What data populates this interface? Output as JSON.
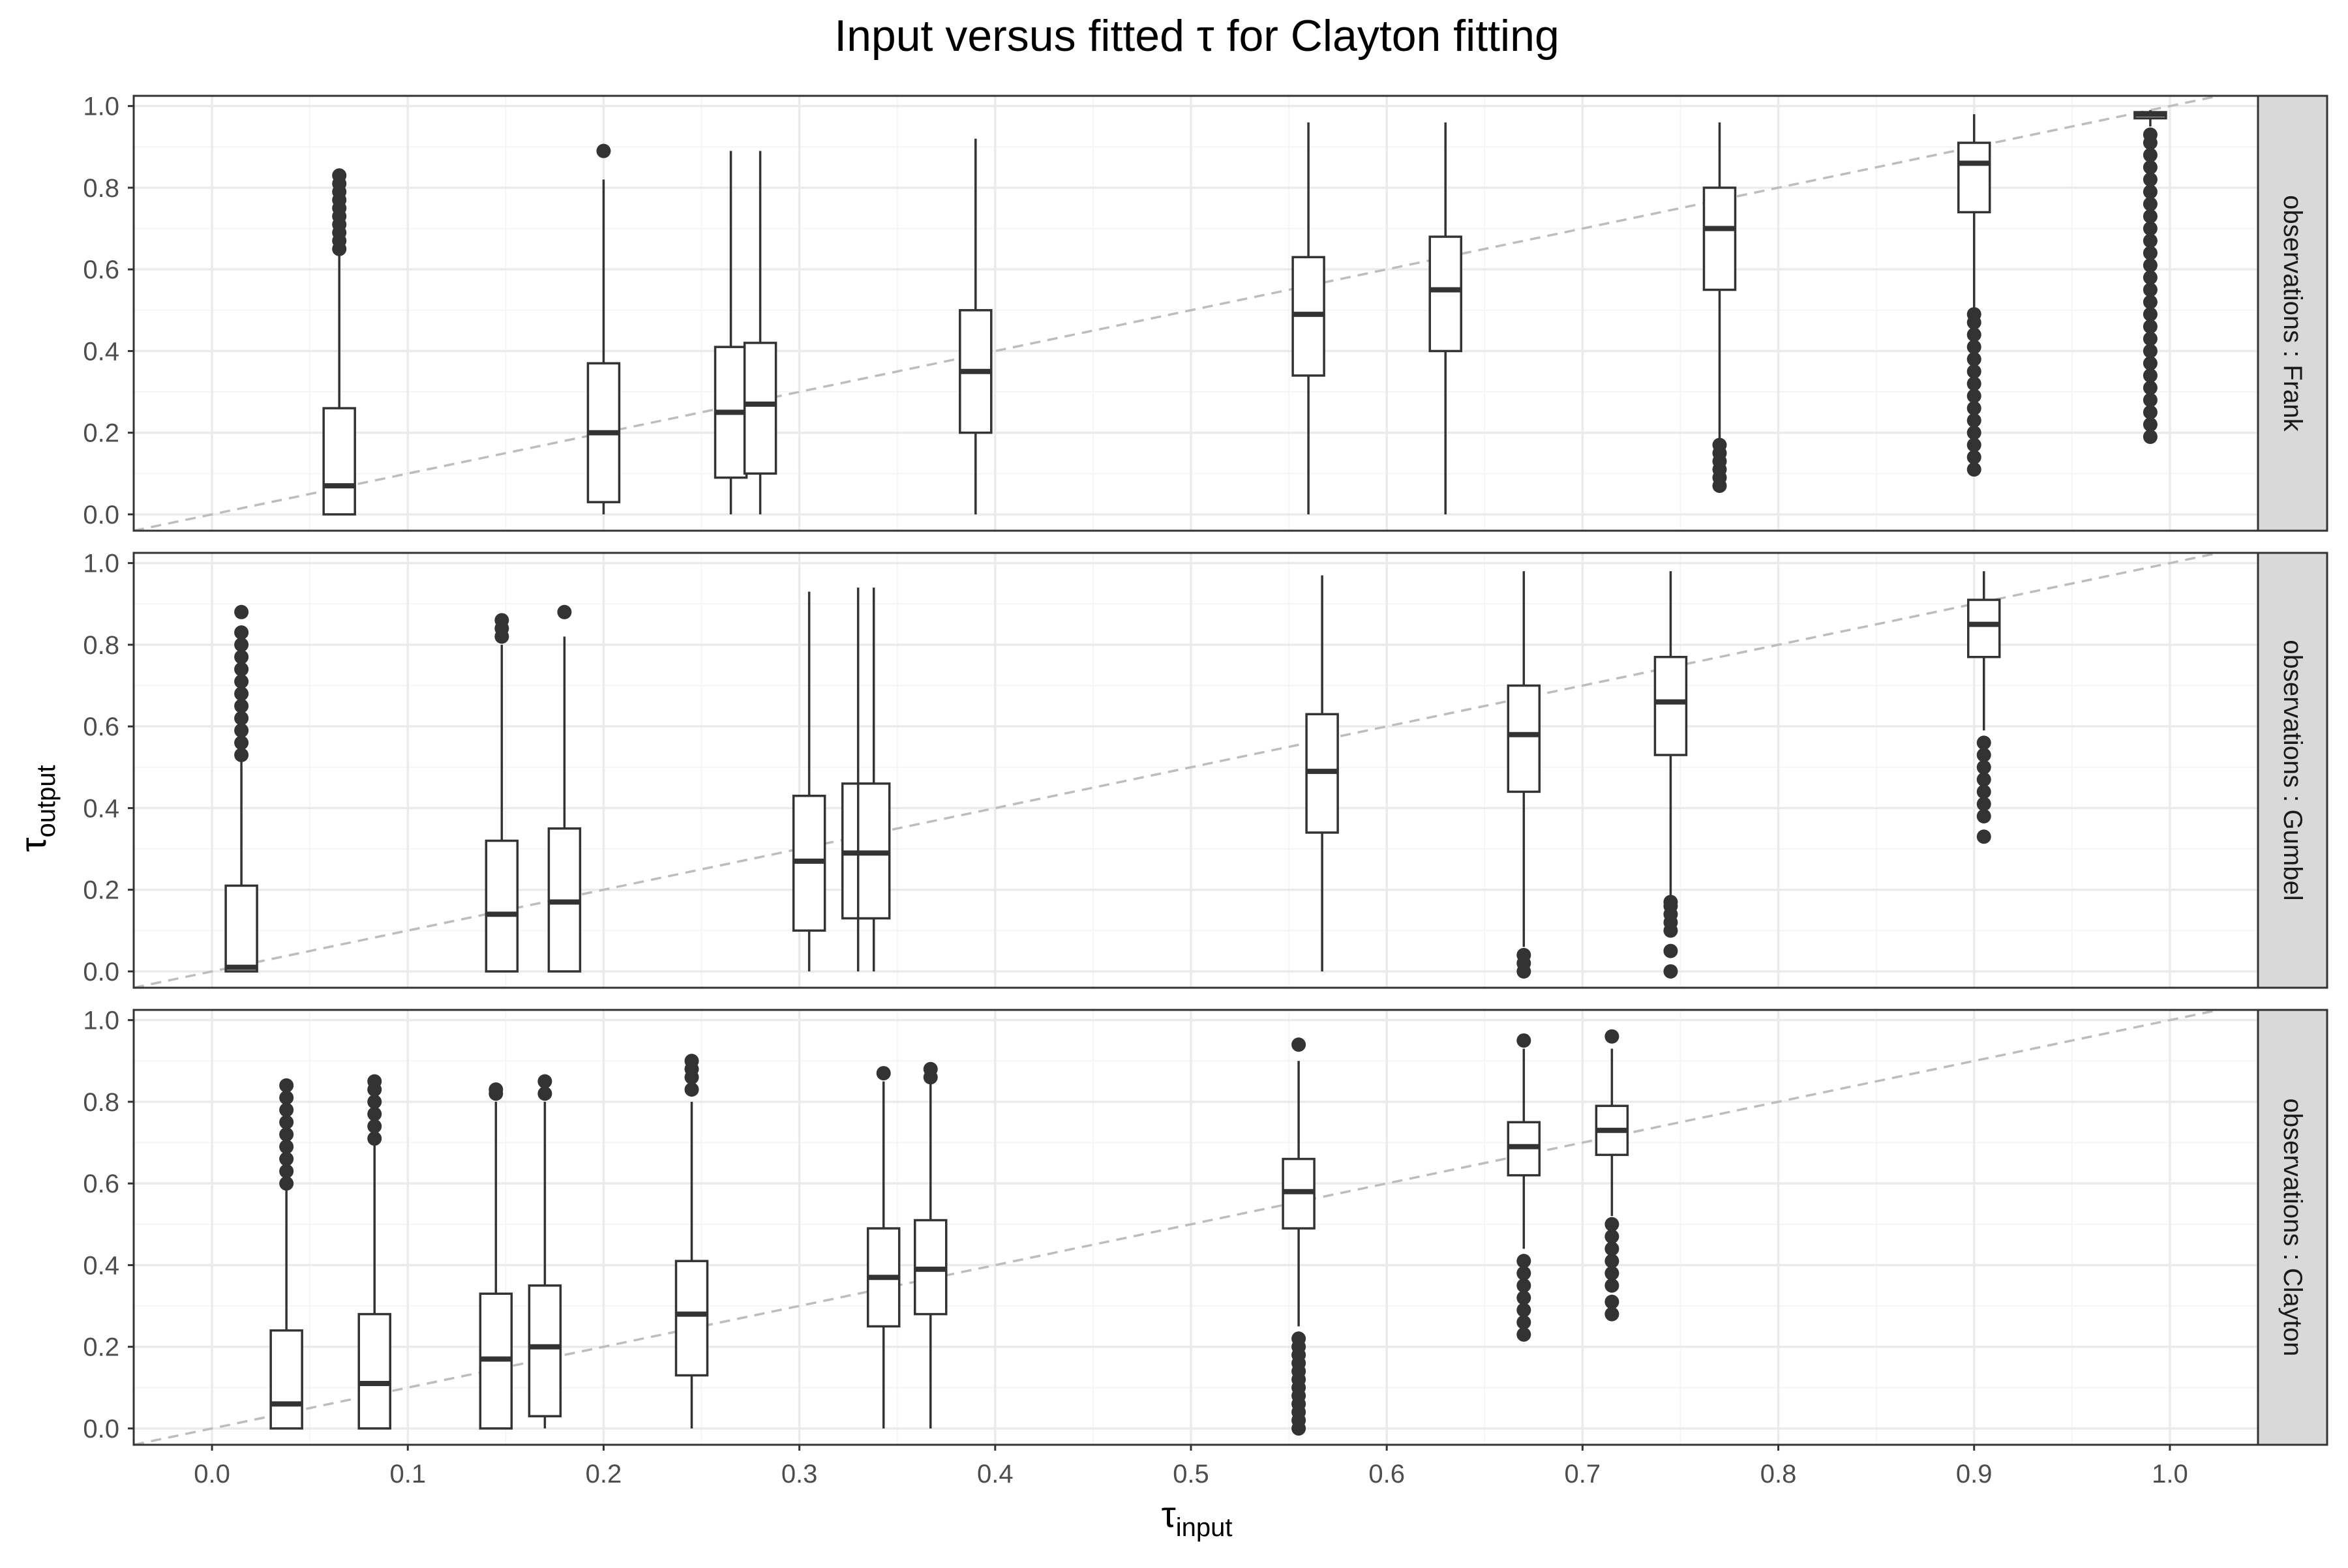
{
  "chart_data": {
    "type": "boxplot",
    "title": "Input versus fitted τ for Clayton  fitting",
    "xlabel": {
      "main": "τ",
      "sub": "input"
    },
    "ylabel": {
      "main": "τ",
      "sub": "output"
    },
    "xlim": [
      -0.04,
      1.045
    ],
    "ylim": [
      -0.04,
      1.025
    ],
    "x_ticks": [
      0.0,
      0.1,
      0.2,
      0.3,
      0.4,
      0.5,
      0.6,
      0.7,
      0.8,
      0.9,
      1.0
    ],
    "x_tick_labels": [
      "0.0",
      "0.1",
      "0.2",
      "0.3",
      "0.4",
      "0.5",
      "0.6",
      "0.7",
      "0.8",
      "0.9",
      "1.0"
    ],
    "y_ticks": [
      0.0,
      0.2,
      0.4,
      0.6,
      0.8,
      1.0
    ],
    "y_tick_labels": [
      "0.0",
      "0.2",
      "0.4",
      "0.6",
      "0.8",
      "1.0"
    ],
    "grid": true,
    "reference_line": {
      "type": "identity",
      "style": "dashed",
      "color": "#bdbdbd"
    },
    "colors": {
      "box": "#333333",
      "strip_bg": "#d9d9d9",
      "grid_major": "#ebebeb",
      "grid_minor": "#f5f5f5",
      "frame": "#333333"
    },
    "facets": [
      {
        "label": "observations : Frank",
        "boxes": [
          {
            "x": 0.065,
            "min": 0.0,
            "q1": 0.0,
            "median": 0.07,
            "q3": 0.26,
            "max": 0.64,
            "outliers": [
              0.65,
              0.67,
              0.69,
              0.71,
              0.73,
              0.75,
              0.77,
              0.79,
              0.81,
              0.83
            ]
          },
          {
            "x": 0.2,
            "min": 0.0,
            "q1": 0.03,
            "median": 0.2,
            "q3": 0.37,
            "max": 0.82,
            "outliers": [
              0.89
            ]
          },
          {
            "x": 0.265,
            "min": 0.0,
            "q1": 0.09,
            "median": 0.25,
            "q3": 0.41,
            "max": 0.89,
            "outliers": []
          },
          {
            "x": 0.28,
            "min": 0.0,
            "q1": 0.1,
            "median": 0.27,
            "q3": 0.42,
            "max": 0.89,
            "outliers": []
          },
          {
            "x": 0.39,
            "min": 0.0,
            "q1": 0.2,
            "median": 0.35,
            "q3": 0.5,
            "max": 0.92,
            "outliers": []
          },
          {
            "x": 0.56,
            "min": 0.0,
            "q1": 0.34,
            "median": 0.49,
            "q3": 0.63,
            "max": 0.96,
            "outliers": []
          },
          {
            "x": 0.63,
            "min": 0.0,
            "q1": 0.4,
            "median": 0.55,
            "q3": 0.68,
            "max": 0.96,
            "outliers": []
          },
          {
            "x": 0.77,
            "min": 0.18,
            "q1": 0.55,
            "median": 0.7,
            "q3": 0.8,
            "max": 0.96,
            "outliers": [
              0.07,
              0.09,
              0.11,
              0.13,
              0.15,
              0.17
            ]
          },
          {
            "x": 0.9,
            "min": 0.5,
            "q1": 0.74,
            "median": 0.86,
            "q3": 0.91,
            "max": 0.98,
            "outliers": [
              0.11,
              0.14,
              0.17,
              0.2,
              0.23,
              0.26,
              0.29,
              0.32,
              0.35,
              0.38,
              0.41,
              0.44,
              0.47,
              0.49
            ]
          },
          {
            "x": 0.99,
            "min": 0.95,
            "q1": 0.97,
            "median": 0.98,
            "q3": 0.985,
            "max": 0.99,
            "outliers": [
              0.19,
              0.22,
              0.25,
              0.28,
              0.31,
              0.34,
              0.37,
              0.4,
              0.43,
              0.46,
              0.49,
              0.52,
              0.55,
              0.58,
              0.61,
              0.64,
              0.67,
              0.7,
              0.73,
              0.76,
              0.79,
              0.82,
              0.85,
              0.88,
              0.91,
              0.93
            ]
          }
        ]
      },
      {
        "label": "observations : Gumbel",
        "boxes": [
          {
            "x": 0.015,
            "min": 0.0,
            "q1": 0.0,
            "median": 0.01,
            "q3": 0.21,
            "max": 0.52,
            "outliers": [
              0.53,
              0.56,
              0.59,
              0.62,
              0.65,
              0.68,
              0.71,
              0.74,
              0.77,
              0.8,
              0.83,
              0.88
            ]
          },
          {
            "x": 0.148,
            "min": 0.0,
            "q1": 0.0,
            "median": 0.14,
            "q3": 0.32,
            "max": 0.8,
            "outliers": [
              0.82,
              0.84,
              0.86
            ]
          },
          {
            "x": 0.18,
            "min": 0.0,
            "q1": 0.0,
            "median": 0.17,
            "q3": 0.35,
            "max": 0.82,
            "outliers": [
              0.88
            ]
          },
          {
            "x": 0.305,
            "min": 0.0,
            "q1": 0.1,
            "median": 0.27,
            "q3": 0.43,
            "max": 0.93,
            "outliers": []
          },
          {
            "x": 0.33,
            "min": 0.0,
            "q1": 0.13,
            "median": 0.29,
            "q3": 0.46,
            "max": 0.94,
            "outliers": []
          },
          {
            "x": 0.338,
            "min": 0.0,
            "q1": 0.13,
            "median": 0.29,
            "q3": 0.46,
            "max": 0.94,
            "outliers": []
          },
          {
            "x": 0.567,
            "min": 0.0,
            "q1": 0.34,
            "median": 0.49,
            "q3": 0.63,
            "max": 0.97,
            "outliers": []
          },
          {
            "x": 0.67,
            "min": 0.06,
            "q1": 0.44,
            "median": 0.58,
            "q3": 0.7,
            "max": 0.98,
            "outliers": [
              0.0,
              0.02,
              0.04
            ]
          },
          {
            "x": 0.745,
            "min": 0.18,
            "q1": 0.53,
            "median": 0.66,
            "q3": 0.77,
            "max": 0.98,
            "outliers": [
              0.0,
              0.05,
              0.1,
              0.12,
              0.14,
              0.16,
              0.17
            ]
          },
          {
            "x": 0.905,
            "min": 0.59,
            "q1": 0.77,
            "median": 0.85,
            "q3": 0.91,
            "max": 0.98,
            "outliers": [
              0.33,
              0.38,
              0.41,
              0.44,
              0.47,
              0.5,
              0.53,
              0.56
            ]
          }
        ]
      },
      {
        "label": "observations : Clayton",
        "boxes": [
          {
            "x": 0.038,
            "min": 0.0,
            "q1": 0.0,
            "median": 0.06,
            "q3": 0.24,
            "max": 0.59,
            "outliers": [
              0.6,
              0.63,
              0.66,
              0.69,
              0.72,
              0.75,
              0.78,
              0.81,
              0.84
            ]
          },
          {
            "x": 0.083,
            "min": 0.0,
            "q1": 0.0,
            "median": 0.11,
            "q3": 0.28,
            "max": 0.7,
            "outliers": [
              0.71,
              0.74,
              0.77,
              0.8,
              0.83,
              0.85
            ]
          },
          {
            "x": 0.145,
            "min": 0.0,
            "q1": 0.0,
            "median": 0.17,
            "q3": 0.33,
            "max": 0.8,
            "outliers": [
              0.82,
              0.83
            ]
          },
          {
            "x": 0.17,
            "min": 0.0,
            "q1": 0.03,
            "median": 0.2,
            "q3": 0.35,
            "max": 0.8,
            "outliers": [
              0.82,
              0.85
            ]
          },
          {
            "x": 0.245,
            "min": 0.0,
            "q1": 0.13,
            "median": 0.28,
            "q3": 0.41,
            "max": 0.8,
            "outliers": [
              0.83,
              0.86,
              0.88,
              0.9
            ]
          },
          {
            "x": 0.343,
            "min": 0.0,
            "q1": 0.25,
            "median": 0.37,
            "q3": 0.49,
            "max": 0.85,
            "outliers": [
              0.87
            ]
          },
          {
            "x": 0.367,
            "min": 0.0,
            "q1": 0.28,
            "median": 0.39,
            "q3": 0.51,
            "max": 0.85,
            "outliers": [
              0.86,
              0.88
            ]
          },
          {
            "x": 0.555,
            "min": 0.25,
            "q1": 0.49,
            "median": 0.58,
            "q3": 0.66,
            "max": 0.9,
            "outliers": [
              0.0,
              0.02,
              0.04,
              0.06,
              0.08,
              0.1,
              0.12,
              0.14,
              0.16,
              0.18,
              0.2,
              0.22,
              0.94
            ]
          },
          {
            "x": 0.67,
            "min": 0.44,
            "q1": 0.62,
            "median": 0.69,
            "q3": 0.75,
            "max": 0.93,
            "outliers": [
              0.23,
              0.26,
              0.29,
              0.32,
              0.35,
              0.38,
              0.41,
              0.95
            ]
          },
          {
            "x": 0.715,
            "min": 0.52,
            "q1": 0.67,
            "median": 0.73,
            "q3": 0.79,
            "max": 0.93,
            "outliers": [
              0.28,
              0.31,
              0.35,
              0.38,
              0.41,
              0.44,
              0.47,
              0.5,
              0.96
            ]
          }
        ]
      }
    ]
  }
}
